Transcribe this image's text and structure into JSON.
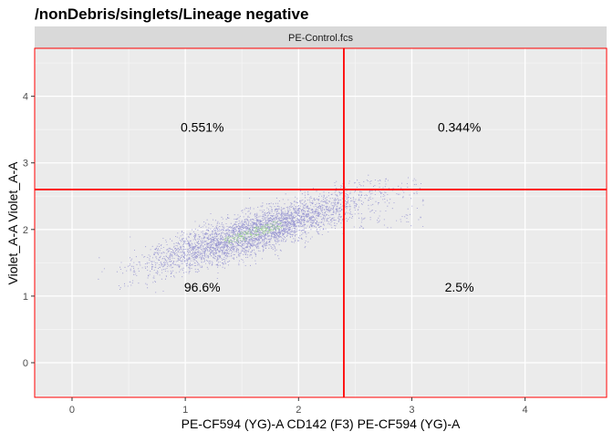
{
  "chart_data": {
    "type": "scatter",
    "title": "/nonDebris/singlets/Lineage negative",
    "facet_label": "PE-Control.fcs",
    "xlabel": "PE-CF594 (YG)-A CD142 (F3) PE-CF594 (YG)-A",
    "ylabel": "Violet_A-A Violet_A-A",
    "xlim": [
      -0.33,
      4.72
    ],
    "ylim": [
      -0.52,
      4.72
    ],
    "x_ticks": [
      0,
      1,
      2,
      3,
      4
    ],
    "y_ticks": [
      0,
      1,
      2,
      3,
      4
    ],
    "grid": true,
    "gate": {
      "x": 2.4,
      "y": 2.6,
      "color": "#ff0000"
    },
    "quadrants": [
      {
        "label": "0.551%",
        "x": 1.15,
        "y": 3.52
      },
      {
        "label": "0.344%",
        "x": 3.42,
        "y": 3.52
      },
      {
        "label": "96.6%",
        "x": 1.15,
        "y": 1.12
      },
      {
        "label": "2.5%",
        "x": 3.42,
        "y": 1.12
      }
    ],
    "point_color": "#7b78c8",
    "population": {
      "approx_count": 5000,
      "center": [
        1.6,
        1.95
      ],
      "major_axis_slope": 0.55,
      "x_range": [
        0.0,
        3.1
      ],
      "y_range": [
        1.05,
        2.85
      ]
    }
  }
}
